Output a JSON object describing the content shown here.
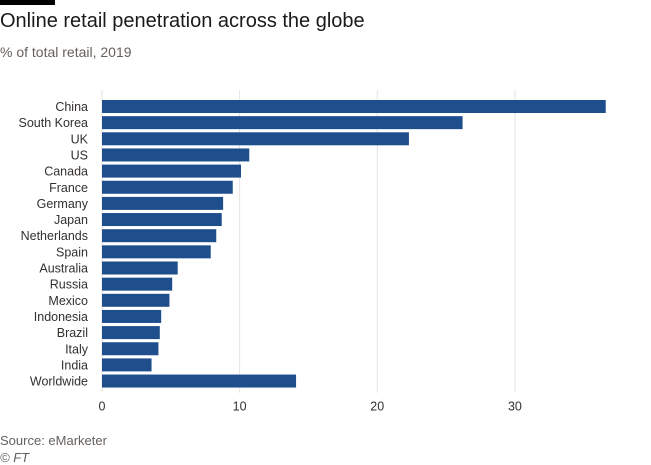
{
  "header": {
    "title": "Online retail penetration across the globe",
    "subtitle": "% of total retail, 2019"
  },
  "footer": {
    "source": "Source: eMarketer",
    "credit": "© FT"
  },
  "colors": {
    "bar": "#1f4e8c",
    "grid": "#e6e3df",
    "text": "#33302e"
  },
  "chart_data": {
    "type": "bar",
    "orientation": "horizontal",
    "title": "Online retail penetration across the globe",
    "subtitle": "% of total retail, 2019",
    "categories": [
      "China",
      "South Korea",
      "UK",
      "US",
      "Canada",
      "France",
      "Germany",
      "Japan",
      "Netherlands",
      "Spain",
      "Australia",
      "Russia",
      "Mexico",
      "Indonesia",
      "Brazil",
      "Italy",
      "India",
      "Worldwide"
    ],
    "values": [
      36.6,
      26.2,
      22.3,
      10.7,
      10.1,
      9.5,
      8.8,
      8.7,
      8.3,
      7.9,
      5.5,
      5.1,
      4.9,
      4.3,
      4.2,
      4.1,
      3.6,
      14.1
    ],
    "xlim": [
      0,
      38
    ],
    "xticks": [
      0,
      10,
      20,
      30
    ],
    "grid": true,
    "legend": "none",
    "xlabel": "",
    "ylabel": ""
  }
}
